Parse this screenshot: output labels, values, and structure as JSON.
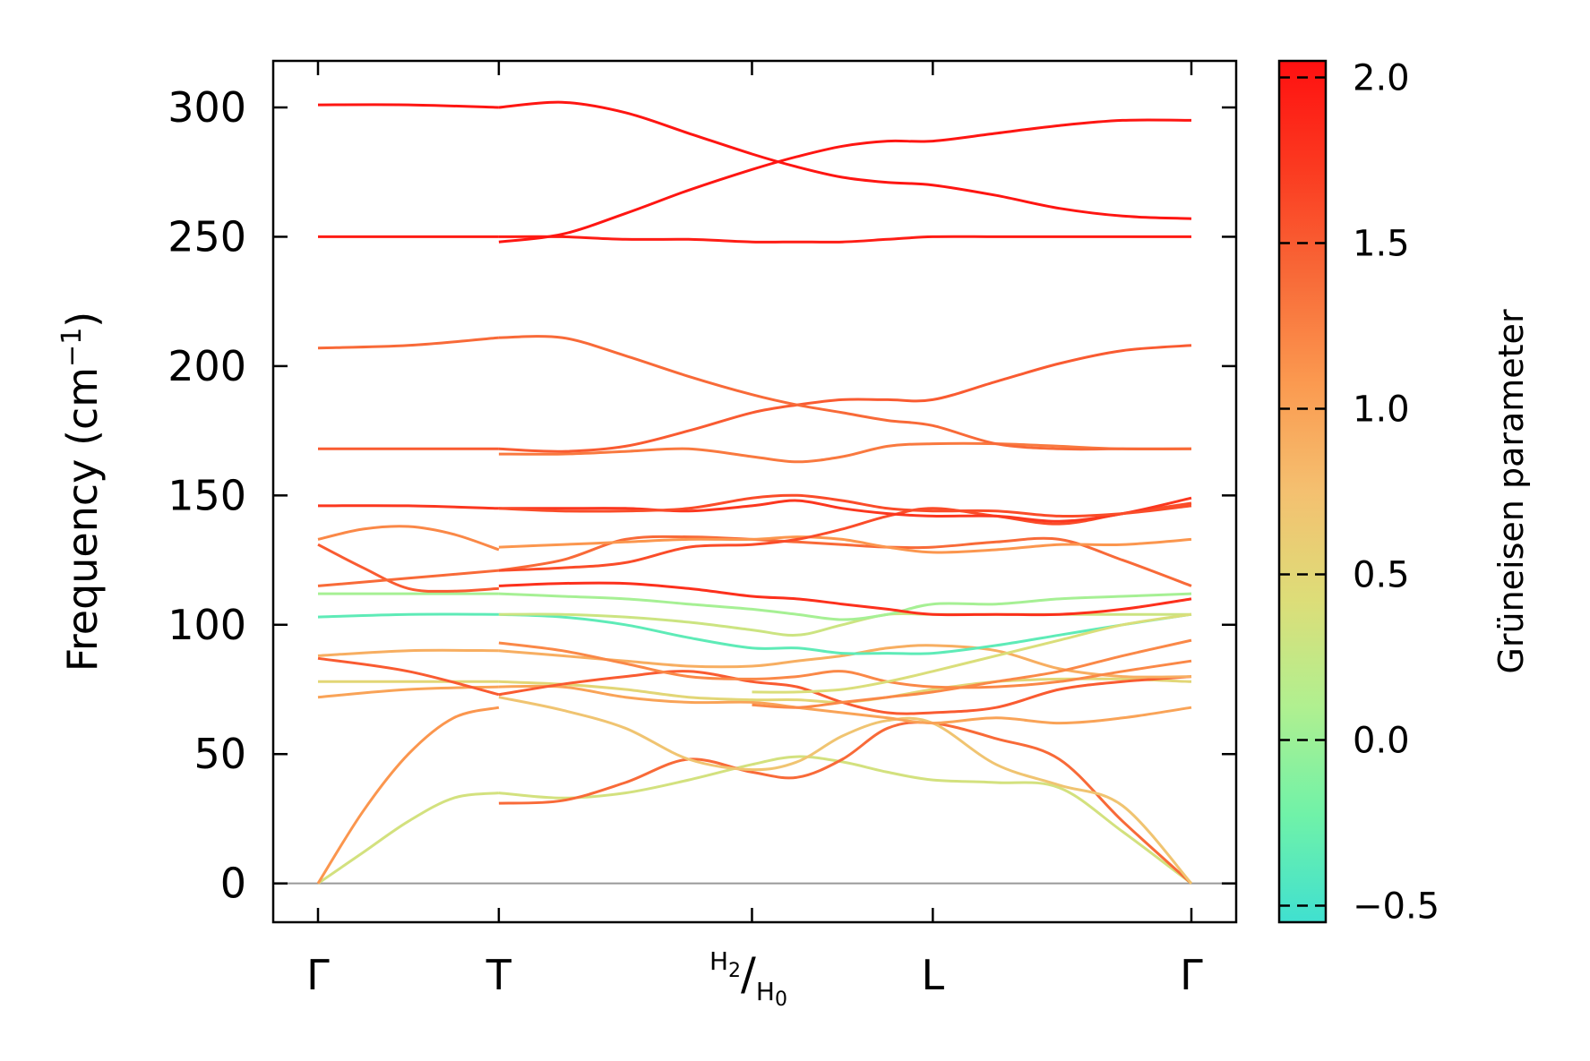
{
  "chart_data": {
    "type": "line",
    "title": "",
    "ylabel": "Frequency (cm",
    "ylabel_sup": "−1",
    "ylabel_close": ")",
    "xlabel": "",
    "ylim": [
      -15,
      318
    ],
    "yticks": [
      0,
      50,
      100,
      150,
      200,
      250,
      300
    ],
    "x_segments": [
      {
        "from": "Γ",
        "to": "T",
        "start": 0.0,
        "end": 1.0
      },
      {
        "from": "T",
        "to": "H2/H0",
        "start": 1.0,
        "end": 2.4
      },
      {
        "from": "H2/H0",
        "to": "L",
        "start": 2.4,
        "end": 3.4
      },
      {
        "from": "L",
        "to": "Γ",
        "start": 3.4,
        "end": 4.83
      }
    ],
    "xticks": [
      {
        "pos": 0.0,
        "label": "Γ"
      },
      {
        "pos": 1.0,
        "label": "T"
      },
      {
        "pos": 2.4,
        "label": "H2/H0",
        "main": "H",
        "sub1": "2",
        "sep": "/",
        "main2": "H",
        "sub2": "0"
      },
      {
        "pos": 3.4,
        "label": "L"
      },
      {
        "pos": 4.83,
        "label": "Γ"
      }
    ],
    "colorbar": {
      "label": "Grüneisen parameter",
      "min": -0.55,
      "max": 2.05,
      "ticks": [
        -0.5,
        0.0,
        0.5,
        1.0,
        1.5,
        2.0
      ],
      "tick_labels": [
        "−0.5",
        "0.0",
        "0.5",
        "1.0",
        "1.5",
        "2.0"
      ],
      "colormap": [
        "#40e0d0",
        "#70f2a8",
        "#b0f090",
        "#dddd78",
        "#f4c070",
        "#fb9a50",
        "#f86a38",
        "#fb3a20",
        "#ff1010"
      ]
    },
    "series": [
      {
        "name": "b1",
        "gamma": 0.35,
        "x": [
          0,
          0.25,
          0.5,
          0.75,
          1,
          1.35,
          1.7,
          2.05,
          2.4,
          2.65,
          2.9,
          3.15,
          3.4,
          3.75,
          4.1,
          4.45,
          4.83
        ],
        "y": [
          0,
          12,
          24,
          33,
          35,
          33,
          35,
          40,
          46,
          49,
          47,
          43,
          40,
          39,
          37,
          20,
          0
        ]
      },
      {
        "name": "b2",
        "gamma": 1.1,
        "x": [
          0,
          0.25,
          0.5,
          0.75,
          1
        ],
        "y": [
          0,
          28,
          50,
          64,
          68
        ]
      },
      {
        "name": "b3",
        "gamma": 1.4,
        "x": [
          1,
          1.35,
          1.7,
          2.05,
          2.4,
          2.65,
          2.9,
          3.15,
          3.4,
          3.75,
          4.1,
          4.45,
          4.83
        ],
        "y": [
          31,
          32,
          39,
          48,
          43,
          41,
          48,
          60,
          62,
          56,
          48,
          24,
          0
        ]
      },
      {
        "name": "b4",
        "gamma": 0.7,
        "x": [
          1,
          1.35,
          1.7,
          2.05,
          2.4,
          2.65,
          2.9,
          3.15,
          3.4,
          3.75,
          4.1,
          4.45,
          4.83
        ],
        "y": [
          72,
          67,
          60,
          48,
          44,
          47,
          57,
          63,
          62,
          46,
          38,
          30,
          0
        ]
      },
      {
        "name": "b5",
        "gamma": 1.0,
        "x": [
          0,
          0.5,
          1,
          1.35,
          1.7,
          2.05,
          2.4,
          2.65,
          2.9,
          3.15,
          3.4,
          3.75,
          4.1,
          4.45,
          4.83
        ],
        "y": [
          72,
          75,
          76,
          76,
          72,
          70,
          70,
          68,
          66,
          64,
          62,
          64,
          62,
          64,
          68
        ]
      },
      {
        "name": "b6",
        "gamma": 0.5,
        "x": [
          0,
          0.5,
          1,
          1.35,
          1.7,
          2.05,
          2.4,
          2.65,
          2.9,
          3.15,
          3.4,
          3.75,
          4.1,
          4.45,
          4.83
        ],
        "y": [
          78,
          78,
          78,
          77,
          75,
          72,
          71,
          71,
          70,
          72,
          75,
          78,
          79,
          79,
          78
        ]
      },
      {
        "name": "b7",
        "gamma": 1.5,
        "x": [
          0,
          0.5,
          1,
          1.35,
          1.7,
          2.05,
          2.4,
          2.65,
          2.9,
          3.15,
          3.4,
          3.75,
          4.1,
          4.45,
          4.83
        ],
        "y": [
          87,
          82,
          73,
          77,
          80,
          82,
          78,
          76,
          70,
          66,
          66,
          68,
          75,
          78,
          80
        ]
      },
      {
        "name": "b8",
        "gamma": 0.9,
        "x": [
          0,
          0.5,
          1,
          1.35,
          1.7,
          2.05,
          2.4,
          2.65,
          2.9,
          3.15,
          3.4,
          3.75,
          4.1,
          4.45,
          4.83
        ],
        "y": [
          88,
          90,
          90,
          88,
          86,
          84,
          84,
          86,
          88,
          91,
          92,
          90,
          83,
          80,
          80
        ]
      },
      {
        "name": "b9",
        "gamma": 1.2,
        "x": [
          1,
          1.35,
          1.7,
          2.05,
          2.4,
          2.65,
          2.9,
          3.15,
          3.4,
          3.75,
          4.1,
          4.45,
          4.83
        ],
        "y": [
          93,
          90,
          85,
          80,
          79,
          80,
          82,
          78,
          76,
          76,
          78,
          82,
          86
        ]
      },
      {
        "name": "b10",
        "gamma": 1.2,
        "x": [
          2.4,
          2.65,
          2.9,
          3.15,
          3.4,
          3.75,
          4.1,
          4.45,
          4.83
        ],
        "y": [
          69,
          68,
          70,
          72,
          74,
          78,
          82,
          88,
          94
        ]
      },
      {
        "name": "b11",
        "gamma": -0.35,
        "x": [
          0,
          0.5,
          1,
          1.35,
          1.7,
          2.05,
          2.4,
          2.65,
          2.9,
          3.15,
          3.4,
          3.75,
          4.1,
          4.45,
          4.83
        ],
        "y": [
          103,
          104,
          104,
          103,
          100,
          95,
          91,
          91,
          89,
          89,
          89,
          92,
          96,
          100,
          104
        ]
      },
      {
        "name": "b12",
        "gamma": 0.3,
        "x": [
          1,
          1.35,
          1.7,
          2.05,
          2.4,
          2.65,
          2.9,
          3.15,
          3.4,
          3.75,
          4.1,
          4.45,
          4.83
        ],
        "y": [
          104,
          104,
          103,
          101,
          98,
          96,
          100,
          104,
          104,
          104,
          104,
          104,
          104
        ]
      },
      {
        "name": "b13",
        "gamma": 0.4,
        "x": [
          2.4,
          2.65,
          2.9,
          3.15,
          3.4,
          3.75,
          4.1,
          4.45,
          4.83
        ],
        "y": [
          74,
          74,
          75,
          78,
          82,
          88,
          94,
          100,
          104
        ]
      },
      {
        "name": "b14",
        "gamma": 0.05,
        "x": [
          0,
          0.5,
          1,
          1.35,
          1.7,
          2.05,
          2.4,
          2.65,
          2.9,
          3.15,
          3.4,
          3.75,
          4.1,
          4.45,
          4.83
        ],
        "y": [
          112,
          112,
          112,
          111,
          110,
          108,
          106,
          104,
          102,
          104,
          108,
          108,
          110,
          111,
          112
        ]
      },
      {
        "name": "b15",
        "gamma": 1.8,
        "x": [
          1,
          1.35,
          1.7,
          2.05,
          2.4,
          2.65,
          2.9,
          3.15,
          3.4,
          3.75,
          4.1,
          4.45,
          4.83
        ],
        "y": [
          115,
          116,
          116,
          114,
          111,
          110,
          108,
          106,
          104,
          104,
          104,
          106,
          110
        ]
      },
      {
        "name": "b16",
        "gamma": 1.5,
        "x": [
          0,
          0.25,
          0.5,
          0.75,
          1
        ],
        "y": [
          131,
          122,
          114,
          113,
          114
        ]
      },
      {
        "name": "b17",
        "gamma": 1.4,
        "x": [
          0,
          0.5,
          1,
          1.35,
          1.7,
          2.05,
          2.4,
          2.65,
          2.9,
          3.15,
          3.4,
          3.75,
          4.1,
          4.45,
          4.83
        ],
        "y": [
          115,
          118,
          121,
          125,
          133,
          134,
          133,
          132,
          131,
          130,
          130,
          132,
          133,
          125,
          115
        ]
      },
      {
        "name": "b18",
        "gamma": 1.2,
        "x": [
          0,
          0.25,
          0.5,
          0.75,
          1
        ],
        "y": [
          133,
          137,
          138,
          135,
          129
        ]
      },
      {
        "name": "b19",
        "gamma": 1.1,
        "x": [
          1,
          1.35,
          1.7,
          2.05,
          2.4,
          2.65,
          2.9,
          3.15,
          3.4,
          3.75,
          4.1,
          4.45,
          4.83
        ],
        "y": [
          130,
          131,
          132,
          133,
          133,
          134,
          133,
          130,
          128,
          129,
          131,
          131,
          133
        ]
      },
      {
        "name": "b20",
        "gamma": 1.6,
        "x": [
          1,
          1.35,
          1.7,
          2.05,
          2.4,
          2.65,
          2.9,
          3.15,
          3.4,
          3.75,
          4.1,
          4.45,
          4.83
        ],
        "y": [
          121,
          122,
          124,
          130,
          131,
          133,
          137,
          142,
          145,
          142,
          139,
          143,
          147
        ]
      },
      {
        "name": "b21",
        "gamma": 1.75,
        "x": [
          0,
          0.5,
          1,
          1.35,
          1.7,
          2.05,
          2.4,
          2.65,
          2.9,
          3.15,
          3.4,
          3.75,
          4.1,
          4.45,
          4.83
        ],
        "y": [
          146,
          146,
          145,
          145,
          145,
          144,
          146,
          148,
          145,
          143,
          142,
          142,
          140,
          143,
          149
        ]
      },
      {
        "name": "b22",
        "gamma": 1.6,
        "x": [
          1,
          1.35,
          1.7,
          2.05,
          2.4,
          2.65,
          2.9,
          3.15,
          3.4,
          3.75,
          4.1,
          4.45,
          4.83
        ],
        "y": [
          145,
          144,
          144,
          145,
          149,
          150,
          148,
          145,
          144,
          144,
          142,
          143,
          146
        ]
      },
      {
        "name": "b23",
        "gamma": 1.3,
        "x": [
          1,
          1.35,
          1.7,
          2.05,
          2.4,
          2.65,
          2.9,
          3.15,
          3.4,
          3.75,
          4.1,
          4.45,
          4.83
        ],
        "y": [
          166,
          166,
          167,
          168,
          165,
          163,
          165,
          169,
          170,
          170,
          169,
          168,
          168
        ]
      },
      {
        "name": "b24",
        "gamma": 1.5,
        "x": [
          0,
          0.5,
          1,
          1.35,
          1.7,
          2.05,
          2.4,
          2.65,
          2.9,
          3.15,
          3.4,
          3.75,
          4.1,
          4.45,
          4.83
        ],
        "y": [
          168,
          168,
          168,
          167,
          169,
          175,
          182,
          185,
          187,
          187,
          187,
          194,
          201,
          206,
          208
        ]
      },
      {
        "name": "b25",
        "gamma": 1.4,
        "x": [
          0,
          0.5,
          1,
          1.35,
          1.7,
          2.05,
          2.4,
          2.65,
          2.9,
          3.15,
          3.4,
          3.75,
          4.1,
          4.45,
          4.83
        ],
        "y": [
          207,
          208,
          211,
          211,
          204,
          196,
          189,
          185,
          182,
          179,
          177,
          170,
          168,
          168,
          168
        ]
      },
      {
        "name": "b26",
        "gamma": 1.95,
        "x": [
          0,
          0.5,
          1,
          1.35,
          1.7,
          2.05,
          2.4,
          2.65,
          2.9,
          3.15,
          3.4,
          3.75,
          4.1,
          4.45,
          4.83
        ],
        "y": [
          250,
          250,
          250,
          250,
          249,
          249,
          248,
          248,
          248,
          249,
          250,
          250,
          250,
          250,
          250
        ]
      },
      {
        "name": "b27",
        "gamma": 2.0,
        "x": [
          1,
          1.35,
          1.7,
          2.05,
          2.4,
          2.65,
          2.9,
          3.15,
          3.4,
          3.75,
          4.1,
          4.45,
          4.83
        ],
        "y": [
          248,
          251,
          259,
          268,
          276,
          281,
          285,
          287,
          287,
          290,
          293,
          295,
          295
        ]
      },
      {
        "name": "b28",
        "gamma": 2.0,
        "x": [
          0,
          0.5,
          1,
          1.35,
          1.7,
          2.05,
          2.4,
          2.65,
          2.9,
          3.15,
          3.4,
          3.75,
          4.1,
          4.45,
          4.83
        ],
        "y": [
          301,
          301,
          300,
          302,
          298,
          290,
          282,
          277,
          273,
          271,
          270,
          266,
          261,
          258,
          257
        ]
      }
    ]
  }
}
